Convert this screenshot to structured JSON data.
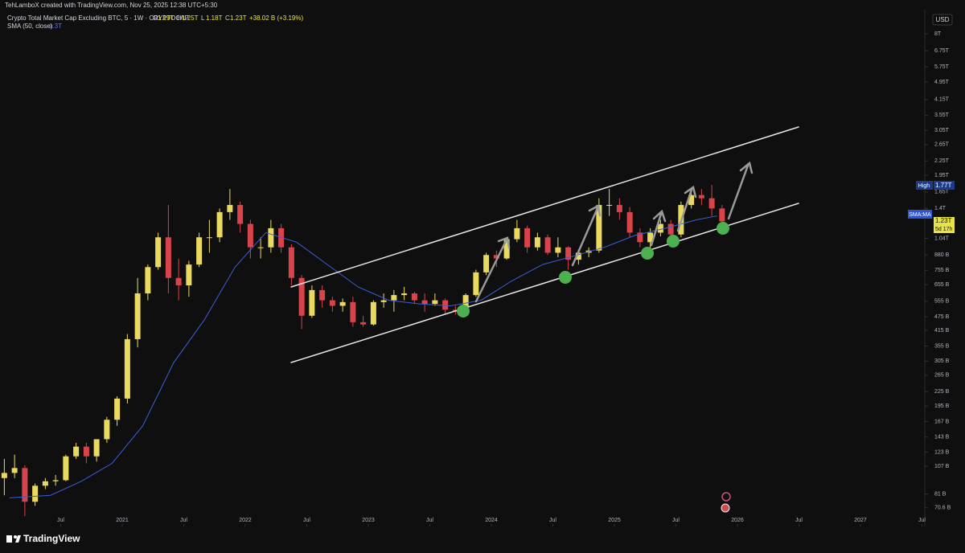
{
  "header": {
    "credit": "TehLamboX created with TradingView.com, Nov 25, 2025 12:38 UTC+5:30"
  },
  "chart_data": {
    "type": "candlestick",
    "title": "Crypto Total Market Cap Excluding BTC, 5 · 1W · CRYPTOCAP",
    "ohlc_legend": [
      {
        "label": "O",
        "value": "1.19T"
      },
      {
        "label": "H",
        "value": "1.25T"
      },
      {
        "label": "L",
        "value": "1.18T"
      },
      {
        "label": "C",
        "value": "1.23T"
      }
    ],
    "change": "+38.02 B (+3.19%)",
    "indicator": {
      "name": "SMA (50, close)",
      "value": "1.3T"
    },
    "currency": "USD",
    "up_color": "#e9da5f",
    "down_color": "#d9434b",
    "x": [
      "2020-01",
      "2020-02",
      "2020-03",
      "2020-04",
      "2020-05",
      "2020-06",
      "2020-07",
      "2020-08",
      "2020-09",
      "2020-10",
      "2020-11",
      "2020-12",
      "2021-01",
      "2021-02",
      "2021-03",
      "2021-04",
      "2021-05",
      "2021-06",
      "2021-07",
      "2021-08",
      "2021-09",
      "2021-10",
      "2021-11",
      "2021-12",
      "2022-01",
      "2022-02",
      "2022-03",
      "2022-04",
      "2022-05",
      "2022-06",
      "2022-07",
      "2022-08",
      "2022-09",
      "2022-10",
      "2022-11",
      "2022-12",
      "2023-01",
      "2023-02",
      "2023-03",
      "2023-04",
      "2023-05",
      "2023-06",
      "2023-07",
      "2023-08",
      "2023-09",
      "2023-10",
      "2023-11",
      "2023-12",
      "2024-01",
      "2024-02",
      "2024-03",
      "2024-04",
      "2024-05",
      "2024-06",
      "2024-07",
      "2024-08",
      "2024-09",
      "2024-10",
      "2024-11",
      "2024-12",
      "2025-01",
      "2025-02",
      "2025-03",
      "2025-04",
      "2025-05",
      "2025-06",
      "2025-07",
      "2025-08",
      "2025-09",
      "2025-10",
      "2025-11"
    ],
    "open": [
      95,
      100,
      105,
      75,
      88,
      92,
      93,
      118,
      130,
      118,
      140,
      170,
      210,
      380,
      600,
      780,
      1050,
      700,
      650,
      800,
      1050,
      1050,
      1350,
      1450,
      1200,
      950,
      950,
      1150,
      950,
      700,
      480,
      620,
      560,
      530,
      550,
      450,
      440,
      550,
      560,
      590,
      600,
      560,
      540,
      560,
      510,
      500,
      590,
      740,
      880,
      850,
      1030,
      1150,
      950,
      1050,
      900,
      950,
      840,
      900,
      920,
      1450,
      1450,
      1350,
      1100,
      1000,
      1100,
      1200,
      1080,
      1450,
      1600,
      1550,
      1400
    ],
    "high": [
      115,
      120,
      108,
      90,
      95,
      98,
      120,
      135,
      135,
      130,
      175,
      215,
      400,
      700,
      800,
      1100,
      1450,
      850,
      830,
      1100,
      1250,
      1400,
      1700,
      1500,
      1250,
      1050,
      1250,
      1200,
      980,
      720,
      650,
      650,
      580,
      570,
      580,
      480,
      560,
      600,
      620,
      640,
      610,
      600,
      600,
      570,
      530,
      600,
      760,
      900,
      920,
      1050,
      1250,
      1180,
      1100,
      1080,
      1050,
      960,
      930,
      950,
      1550,
      1700,
      1550,
      1420,
      1150,
      1150,
      1250,
      1250,
      1500,
      1700,
      1700,
      1770,
      1450
    ],
    "low": [
      80,
      95,
      65,
      72,
      85,
      88,
      92,
      115,
      110,
      112,
      135,
      160,
      200,
      350,
      560,
      760,
      600,
      560,
      580,
      780,
      900,
      1000,
      1250,
      1100,
      850,
      850,
      900,
      900,
      650,
      420,
      470,
      520,
      500,
      500,
      430,
      430,
      435,
      520,
      500,
      560,
      540,
      500,
      530,
      490,
      485,
      495,
      580,
      720,
      780,
      840,
      1000,
      900,
      920,
      880,
      860,
      760,
      800,
      860,
      900,
      1300,
      1250,
      1050,
      950,
      880,
      1060,
      1000,
      1050,
      1400,
      1450,
      1300,
      1180
    ],
    "close": [
      100,
      105,
      75,
      88,
      92,
      93,
      118,
      130,
      118,
      140,
      170,
      210,
      380,
      600,
      780,
      1050,
      700,
      650,
      800,
      1050,
      1050,
      1350,
      1450,
      1200,
      950,
      950,
      1150,
      950,
      700,
      480,
      620,
      560,
      530,
      550,
      450,
      440,
      550,
      560,
      590,
      600,
      560,
      540,
      560,
      510,
      500,
      590,
      740,
      880,
      850,
      1030,
      1150,
      950,
      1050,
      900,
      950,
      840,
      900,
      920,
      1450,
      1450,
      1350,
      1100,
      1000,
      1100,
      1200,
      1080,
      1450,
      1600,
      1550,
      1400,
      1230
    ],
    "sma": {
      "name": "SMA",
      "color": "#3b5fd6",
      "x": [
        "2020-02",
        "2020-06",
        "2020-09",
        "2020-12",
        "2021-03",
        "2021-06",
        "2021-09",
        "2021-12",
        "2022-03",
        "2022-06",
        "2022-09",
        "2022-12",
        "2023-03",
        "2023-06",
        "2023-09",
        "2023-12",
        "2024-03",
        "2024-06",
        "2024-09",
        "2024-12",
        "2025-03",
        "2025-06",
        "2025-09",
        "2025-11"
      ],
      "values": [
        78,
        80,
        92,
        110,
        160,
        300,
        460,
        780,
        1100,
        1000,
        800,
        640,
        560,
        540,
        530,
        560,
        680,
        800,
        870,
        950,
        1070,
        1150,
        1250,
        1300
      ]
    },
    "ylim": [
      61,
      9940
    ],
    "log_scale": true,
    "yticks": [
      {
        "value": 8000,
        "label": "8T"
      },
      {
        "value": 6750,
        "label": "6.75T"
      },
      {
        "value": 5750,
        "label": "5.75T"
      },
      {
        "value": 4950,
        "label": "4.95T"
      },
      {
        "value": 4150,
        "label": "4.15T"
      },
      {
        "value": 3550,
        "label": "3.55T"
      },
      {
        "value": 3050,
        "label": "3.05T"
      },
      {
        "value": 2650,
        "label": "2.65T"
      },
      {
        "value": 2250,
        "label": "2.25T"
      },
      {
        "value": 1950,
        "label": "1.95T"
      },
      {
        "value": 1650,
        "label": "1.65T"
      },
      {
        "value": 1400,
        "label": "1.4T"
      },
      {
        "value": 1040,
        "label": "1.04T"
      },
      {
        "value": 880,
        "label": "880 B"
      },
      {
        "value": 755,
        "label": "755 B"
      },
      {
        "value": 655,
        "label": "655 B"
      },
      {
        "value": 555,
        "label": "555 B"
      },
      {
        "value": 475,
        "label": "475 B"
      },
      {
        "value": 415,
        "label": "415 B"
      },
      {
        "value": 355,
        "label": "355 B"
      },
      {
        "value": 305,
        "label": "305 B"
      },
      {
        "value": 265,
        "label": "265 B"
      },
      {
        "value": 225,
        "label": "225 B"
      },
      {
        "value": 195,
        "label": "195 B"
      },
      {
        "value": 167,
        "label": "167 B"
      },
      {
        "value": 143,
        "label": "143 B"
      },
      {
        "value": 123,
        "label": "123 B"
      },
      {
        "value": 107,
        "label": "107 B"
      },
      {
        "value": 81,
        "label": "81 B"
      },
      {
        "value": 70.6,
        "label": "70.6 B"
      }
    ],
    "xticks": [
      {
        "value": "2020-07",
        "label": "Jul"
      },
      {
        "value": "2021-01",
        "label": "2021"
      },
      {
        "value": "2021-07",
        "label": "Jul"
      },
      {
        "value": "2022-01",
        "label": "2022"
      },
      {
        "value": "2022-07",
        "label": "Jul"
      },
      {
        "value": "2023-01",
        "label": "2023"
      },
      {
        "value": "2023-07",
        "label": "Jul"
      },
      {
        "value": "2024-01",
        "label": "2024"
      },
      {
        "value": "2024-07",
        "label": "Jul"
      },
      {
        "value": "2025-01",
        "label": "2025"
      },
      {
        "value": "2025-07",
        "label": "Jul"
      },
      {
        "value": "2026-01",
        "label": "2026"
      },
      {
        "value": "2026-07",
        "label": "Jul"
      },
      {
        "value": "2027-01",
        "label": "2027"
      },
      {
        "value": "2027-07",
        "label": "Jul"
      }
    ]
  },
  "price_axis_labels": {
    "high_label": "High",
    "high_value": "1.77T",
    "sma_label": "SMA:MA",
    "last_price": "1.23T",
    "countdown": "5d 17h"
  },
  "footer": {
    "brand": "TradingView"
  }
}
